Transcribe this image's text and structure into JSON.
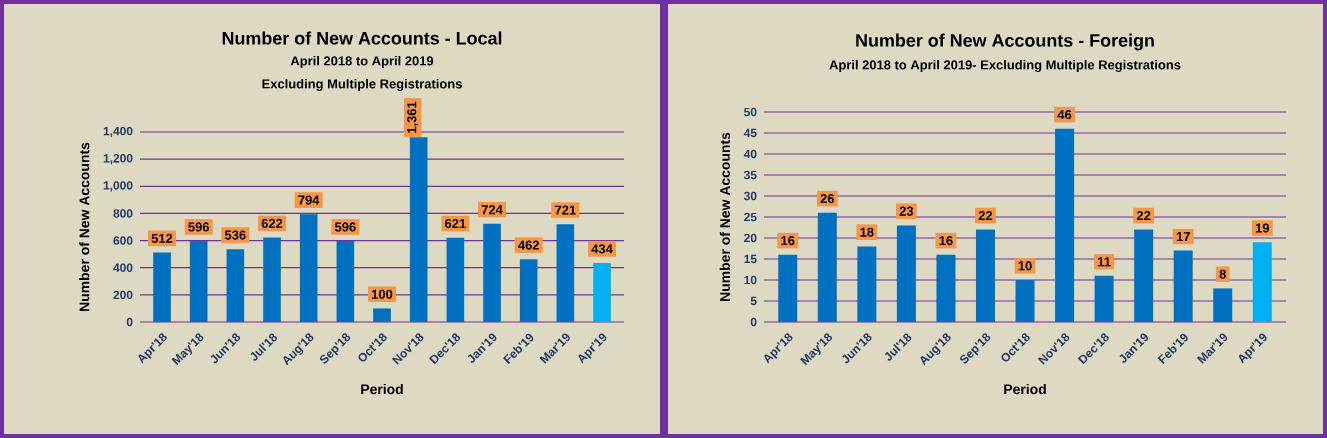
{
  "chart_data": [
    {
      "type": "bar",
      "title": "Number of New Accounts - Local",
      "subtitle": "April 2018 to April 2019",
      "annotations": [
        "Excluding Multiple Registrations"
      ],
      "xlabel": "Period",
      "ylabel": "Number of New Accounts",
      "categories": [
        "Apr'18",
        "May'18",
        "Jun'18",
        "Jul'18",
        "Aug'18",
        "Sep'18",
        "Oct'18",
        "Nov'18",
        "Dec'18",
        "Jan'19",
        "Feb'19",
        "Mar'19",
        "Apr'19"
      ],
      "values": [
        512,
        596,
        536,
        622,
        794,
        596,
        100,
        1361,
        621,
        724,
        462,
        721,
        434
      ],
      "value_labels": [
        "512",
        "596",
        "536",
        "622",
        "794",
        "596",
        "100",
        "1,361",
        "621",
        "724",
        "462",
        "721",
        "434"
      ],
      "colors": [
        "#0070c0",
        "#0070c0",
        "#0070c0",
        "#0070c0",
        "#0070c0",
        "#0070c0",
        "#0070c0",
        "#0070c0",
        "#0070c0",
        "#0070c0",
        "#0070c0",
        "#0070c0",
        "#00b0f0"
      ],
      "ylim": [
        0,
        1400
      ],
      "yticks": [
        0,
        200,
        400,
        600,
        800,
        {
          "value": 1000,
          "label": "1,000"
        },
        {
          "value": 1200,
          "label": "1,200"
        },
        {
          "value": 1400,
          "label": "1,400"
        }
      ],
      "grid": "y"
    },
    {
      "type": "bar",
      "title": "Number of New Accounts - Foreign",
      "subtitle": "April 2018 to April 2019- Excluding Multiple Registrations",
      "xlabel": "Period",
      "ylabel": "Number of New Accounts",
      "categories": [
        "Apr'18",
        "May'18",
        "Jun'18",
        "Jul'18",
        "Aug'18",
        "Sep'18",
        "Oct'18",
        "Nov'18",
        "Dec'18",
        "Jan'19",
        "Feb'19",
        "Mar'19",
        "Apr'19"
      ],
      "values": [
        16,
        26,
        18,
        23,
        16,
        22,
        10,
        46,
        11,
        22,
        17,
        8,
        19
      ],
      "colors": [
        "#0070c0",
        "#0070c0",
        "#0070c0",
        "#0070c0",
        "#0070c0",
        "#0070c0",
        "#0070c0",
        "#0070c0",
        "#0070c0",
        "#0070c0",
        "#0070c0",
        "#0070c0",
        "#00b0f0"
      ],
      "data_labels": true,
      "ylim": [
        0,
        50
      ],
      "yticks": [
        0,
        5,
        10,
        15,
        20,
        25,
        30,
        35,
        40,
        45,
        50
      ],
      "grid": "y"
    }
  ]
}
